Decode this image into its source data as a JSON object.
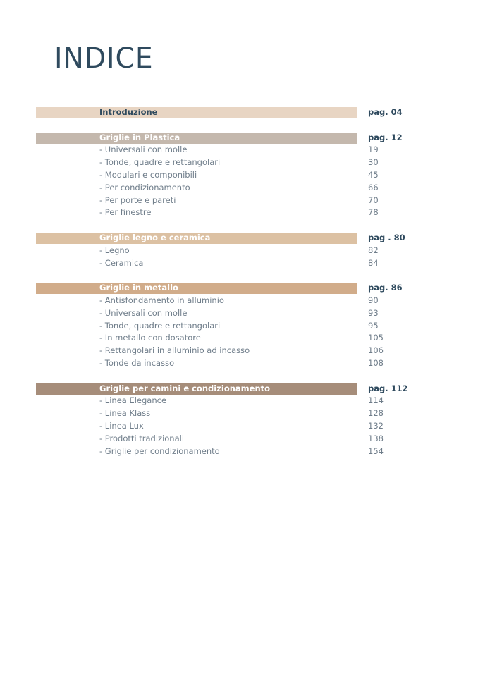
{
  "title": "INDICE",
  "sections": [
    {
      "label": "Introduzione",
      "page": "pag. 04",
      "color": "#e8d5c3",
      "items": []
    },
    {
      "label": "Griglie in Plastica",
      "page": "pag. 12",
      "color": "#c4b8ad",
      "items": [
        {
          "label": "- Universali con molle",
          "page": "19"
        },
        {
          "label": "- Tonde, quadre e rettangolari",
          "page": "30"
        },
        {
          "label": "- Modulari e componibili",
          "page": "45"
        },
        {
          "label": "- Per condizionamento",
          "page": "66"
        },
        {
          "label": "- Per porte e pareti",
          "page": "70"
        },
        {
          "label": "- Per finestre",
          "page": "78"
        }
      ]
    },
    {
      "label": "Griglie legno e ceramica",
      "page": "pag . 80",
      "color": "#dcc1a3",
      "items": [
        {
          "label": "- Legno",
          "page": "82"
        },
        {
          "label": "- Ceramica",
          "page": "84"
        }
      ]
    },
    {
      "label": "Griglie in metallo",
      "page": "pag. 86",
      "color": "#d1ac8a",
      "items": [
        {
          "label": "- Antisfondamento in alluminio",
          "page": "90"
        },
        {
          "label": "- Universali con molle",
          "page": "93"
        },
        {
          "label": "- Tonde, quadre e rettangolari",
          "page": "95"
        },
        {
          "label": "- In metallo con dosatore",
          "page": "105"
        },
        {
          "label": "- Rettangolari in alluminio ad incasso",
          "page": "106"
        },
        {
          "label": "- Tonde da incasso",
          "page": "108"
        }
      ]
    },
    {
      "label": "Griglie per camini e condizionamento",
      "page": "pag. 112",
      "color": "#a68d7a",
      "items": [
        {
          "label": "- Linea Elegance",
          "page": "114"
        },
        {
          "label": "- Linea Klass",
          "page": "128"
        },
        {
          "label": "- Linea Lux",
          "page": "132"
        },
        {
          "label": "- Prodotti tradizionali",
          "page": "138"
        },
        {
          "label": "- Griglie per condizionamento",
          "page": "154"
        }
      ]
    }
  ]
}
